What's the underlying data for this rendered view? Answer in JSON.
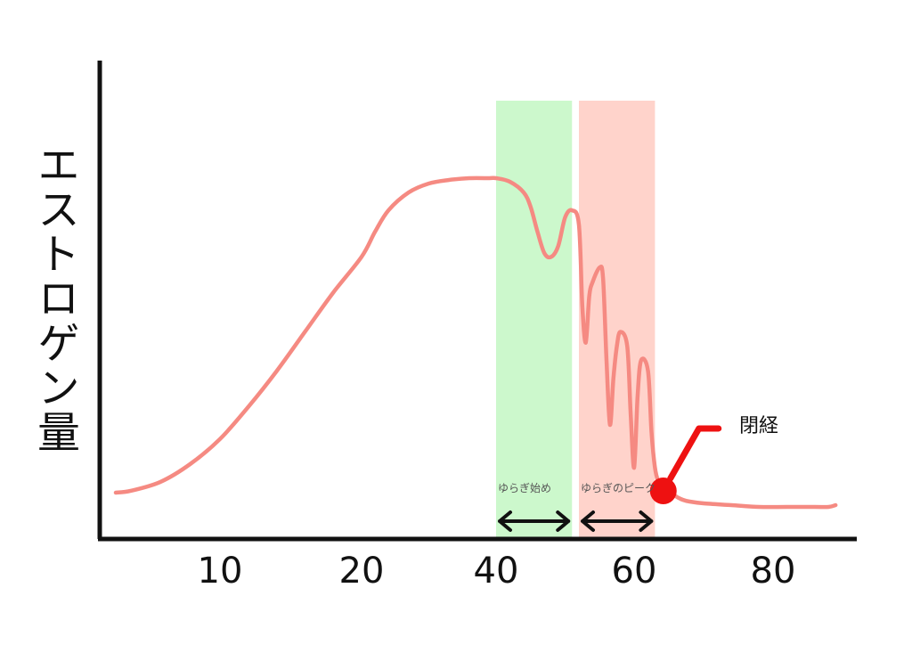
{
  "chart_data": {
    "type": "line",
    "ylabel": "エストロゲン量",
    "xlabel": "",
    "x_ticks": [
      "10",
      "20",
      "40",
      "60",
      "80"
    ],
    "series": [
      {
        "x": [
          3,
          4,
          6,
          8,
          10,
          12,
          14,
          16,
          18,
          20,
          22,
          24,
          27,
          30,
          33,
          36,
          39,
          40,
          42,
          44,
          45,
          46,
          47,
          48,
          49,
          50,
          51,
          52,
          52.5,
          53,
          53.5,
          54,
          55,
          55.5,
          56,
          56.5,
          57,
          57.5,
          58,
          59,
          59.5,
          60,
          60.5,
          61,
          62,
          62.5,
          63,
          63.5,
          64,
          65,
          66,
          67,
          68,
          70,
          74,
          78,
          82,
          86,
          88,
          89
        ],
        "y": [
          3,
          3.5,
          6,
          11,
          18,
          27,
          37,
          48,
          59,
          69,
          76,
          82,
          87,
          89.5,
          90.5,
          91,
          91,
          91,
          90,
          87,
          83,
          76,
          70,
          69,
          72,
          80,
          82,
          78,
          55,
          45,
          58,
          62,
          66,
          63,
          40,
          22,
          35,
          44,
          48,
          44,
          25,
          10,
          30,
          40,
          37,
          20,
          10,
          6,
          4.5,
          4,
          2,
          1,
          0.5,
          0,
          -0.5,
          -1,
          -1,
          -1,
          -1,
          -0.5
        ]
      }
    ],
    "bands": [
      {
        "label": "ゆらぎ始め",
        "from": 40,
        "to": 51,
        "color": "#ccf8cc"
      },
      {
        "label": "ゆらぎのピーク",
        "from": 52,
        "to": 63,
        "color": "#ffd3cb"
      }
    ],
    "annotations": [
      {
        "label": "閉経",
        "x": 64.2,
        "y": 3.5,
        "color": "#ee1111"
      }
    ],
    "grid": false,
    "line_color": "#f58a82"
  }
}
